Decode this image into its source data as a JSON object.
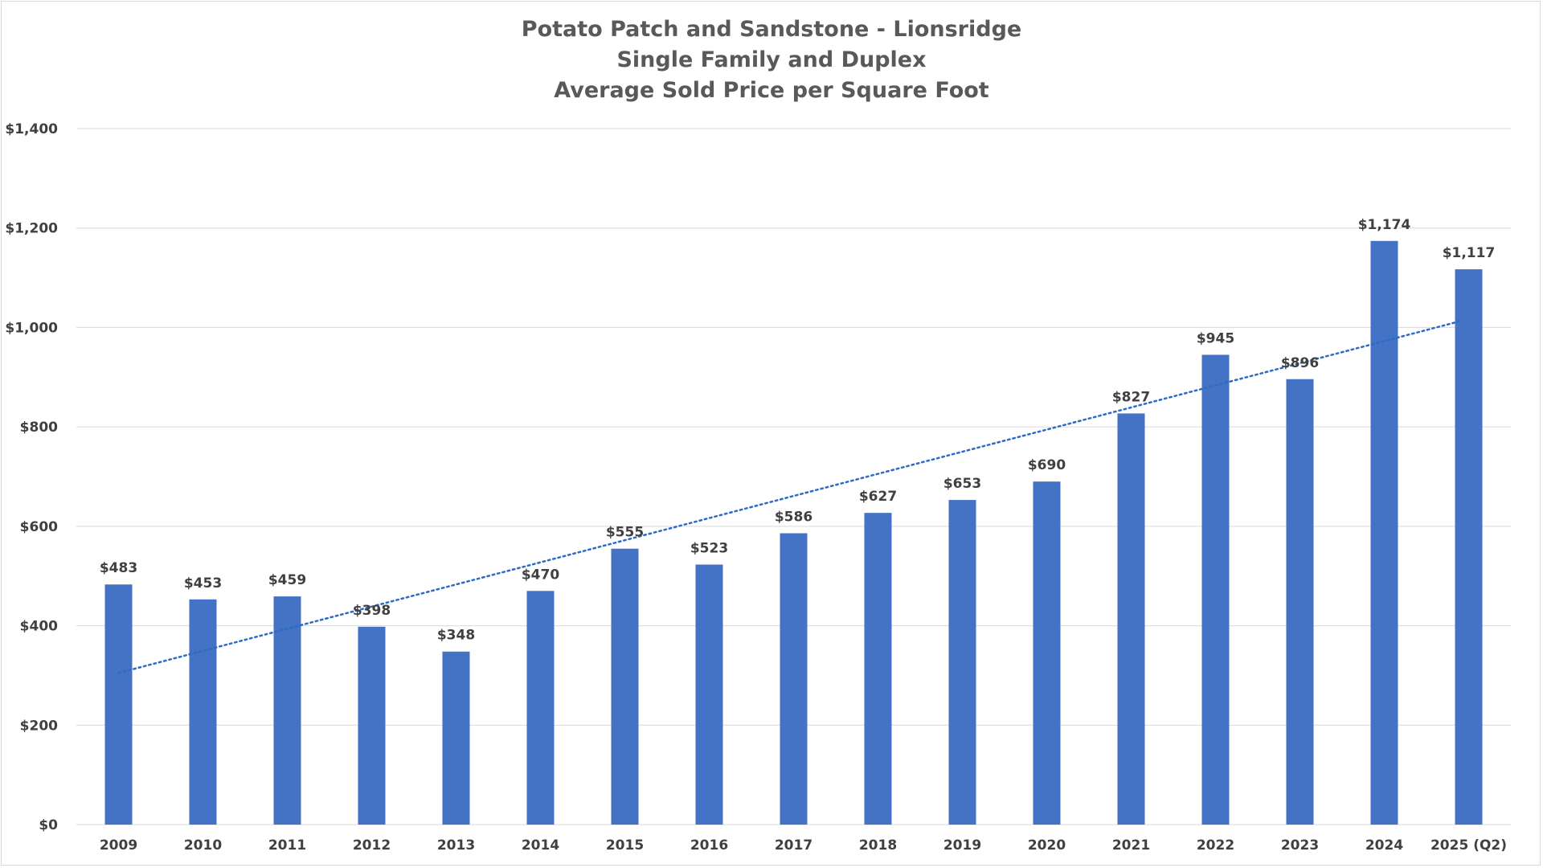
{
  "chart_data": {
    "type": "bar",
    "title_lines": [
      "Potato Patch and Sandstone - Lionsridge",
      "Single Family and Duplex",
      "Average Sold Price per Square Foot"
    ],
    "categories": [
      "2009",
      "2010",
      "2011",
      "2012",
      "2013",
      "2014",
      "2015",
      "2016",
      "2017",
      "2018",
      "2019",
      "2020",
      "2021",
      "2022",
      "2023",
      "2024",
      "2025 (Q2)"
    ],
    "values": [
      483,
      453,
      459,
      398,
      348,
      470,
      555,
      523,
      586,
      627,
      653,
      690,
      827,
      945,
      896,
      1174,
      1117
    ],
    "data_labels": [
      "$483",
      "$453",
      "$459",
      "$398",
      "$348",
      "$470",
      "$555",
      "$523",
      "$586",
      "$627",
      "$653",
      "$690",
      "$827",
      "$945",
      "$896",
      "$1,174",
      "$1,117"
    ],
    "y_ticks": [
      0,
      200,
      400,
      600,
      800,
      1000,
      1200,
      1400
    ],
    "y_tick_labels": [
      "$0",
      "$200",
      "$400",
      "$600",
      "$800",
      "$1,000",
      "$1,200",
      "$1,400"
    ],
    "ylim": [
      0,
      1400
    ],
    "xlabel": "",
    "ylabel": "",
    "grid": true,
    "legend": false,
    "trendline": {
      "type": "linear",
      "style": "dotted",
      "start_value": 305,
      "end_value": 1012
    },
    "colors": {
      "bar": "#4472C4",
      "trendline": "#2E6BC6",
      "grid": "#d9d9d9",
      "text": "#404040",
      "title": "#595959"
    }
  }
}
